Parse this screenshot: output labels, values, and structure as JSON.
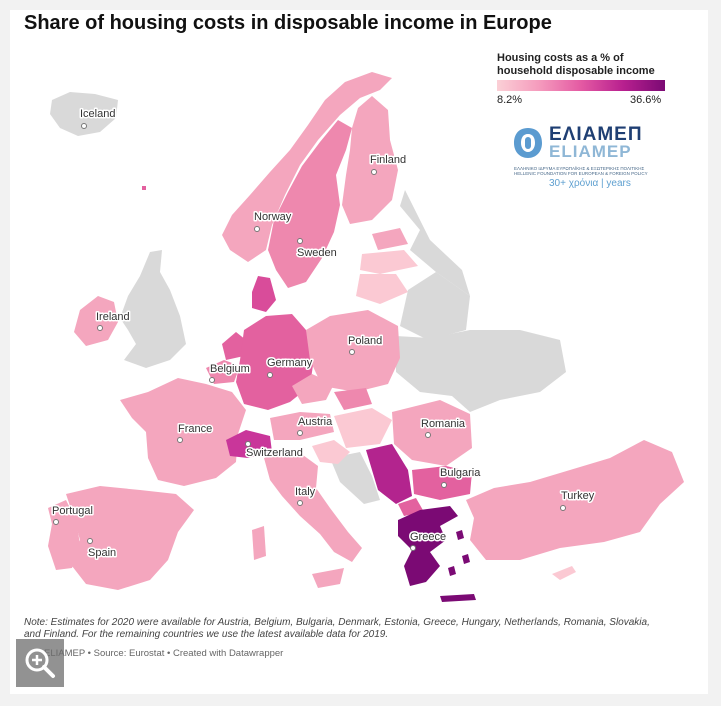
{
  "title": "Share of housing costs in disposable income in Europe",
  "legend": {
    "title": "Housing costs as a % of household disposable income",
    "min_label": "8.2%",
    "max_label": "36.6%",
    "min": 8.2,
    "max": 36.6,
    "colors": [
      "#fbd0d6",
      "#f59bbd",
      "#e45aa3",
      "#b8208f",
      "#7b0a74"
    ]
  },
  "logo": {
    "greek": "ΕΛΙΑΜΕΠ",
    "latin": "ELIAMEP",
    "sub1": "ΕΛΛΗΝΙΚΟ ΙΔΡΥΜΑ ΕΥΡΩΠΑΪΚΗΣ & ΕΞΩΤΕΡΙΚΗΣ ΠΟΛΙΤΙΚΗΣ",
    "sub2": "HELLENIC FOUNDATION FOR EUROPEAN & FOREIGN POLICY",
    "years": "30+ χρόνια | years"
  },
  "city_labels": {
    "iceland": "Iceland",
    "finland": "Finland",
    "norway": "Norway",
    "sweden": "Sweden",
    "ireland": "Ireland",
    "poland": "Poland",
    "belgium": "Belgium",
    "germany": "Germany",
    "austria": "Austria",
    "france": "France",
    "romania": "Romania",
    "switzerland": "Switzerland",
    "bulgaria": "Bulgaria",
    "italy": "Italy",
    "turkey": "Turkey",
    "portugal": "Portugal",
    "spain": "Spain",
    "greece": "Greece"
  },
  "map_colors": {
    "no_data": "#d9d9d9",
    "light": "#fbc9d3",
    "mid_light": "#f4a6be",
    "mid": "#ee88ae",
    "mid_dark": "#e3619f",
    "dark": "#c9369a",
    "darker": "#b3248e",
    "darkest": "#7b0a74",
    "sea": "#ffffff"
  },
  "note": "Note: Estimates for 2020 were available for Austria, Belgium, Bulgaria, Denmark, Estonia, Greece, Hungary, Netherlands, Romania, Slovakia, and Finland. For the remaining countries we use the latest available data for 2019.",
  "footer": "ELIAMEP • Source: Eurostat • Created with Datawrapper"
}
